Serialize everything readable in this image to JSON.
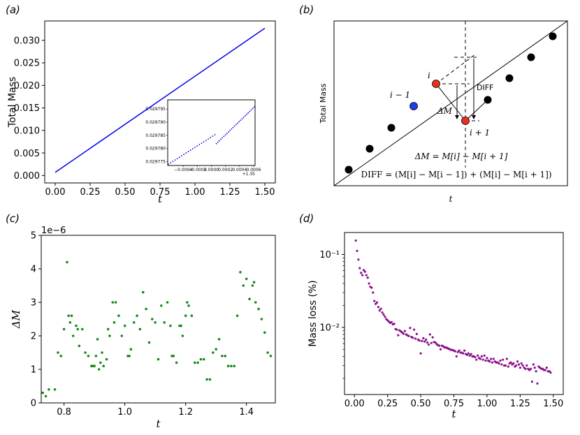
{
  "panels": {
    "a": "(a)",
    "b": "(b)",
    "c": "(c)",
    "d": "(d)"
  },
  "chart_data": [
    {
      "id": "a",
      "type": "line",
      "xlabel": "t",
      "ylabel": "Total Mass",
      "xlim": [
        -0.075,
        1.575
      ],
      "ylim": [
        -0.00165,
        0.0343
      ],
      "xticks": [
        "0.00",
        "0.25",
        "0.50",
        "0.75",
        "1.00",
        "1.25",
        "1.50"
      ],
      "xtick_values": [
        0,
        0.25,
        0.5,
        0.75,
        1.0,
        1.25,
        1.5
      ],
      "yticks": [
        "0.000",
        "0.005",
        "0.010",
        "0.015",
        "0.020",
        "0.025",
        "0.030"
      ],
      "ytick_values": [
        0,
        0.005,
        0.01,
        0.015,
        0.02,
        0.025,
        0.03
      ],
      "color": "#0000ee",
      "x": [
        0.0,
        1.5
      ],
      "y": [
        0.0007,
        0.0327
      ],
      "inset": {
        "type": "scatter",
        "xlim": [
          -0.00062,
          0.00062
        ],
        "ylim": [
          0.0297735,
          0.0297985
        ],
        "xticks": [
          "−0.0004",
          "−0.0002",
          "0.0000",
          "0.0002",
          "0.0004",
          "0.0006"
        ],
        "xtick_values": [
          -0.0004,
          -0.0002,
          0.0,
          0.0002,
          0.0004,
          0.0006
        ],
        "yticks": [
          "0.029775",
          "0.029780",
          "0.029785",
          "0.029790",
          "0.029795"
        ],
        "ytick_values": [
          0.029775,
          0.02978,
          0.029785,
          0.02979,
          0.029795
        ],
        "offset_label": "+1.35",
        "color": "#0000ee",
        "segments": [
          {
            "x0": -0.00061,
            "x1": 5e-05,
            "y0": 0.029774,
            "y1": 0.0297852,
            "n": 22
          },
          {
            "x0": 7e-05,
            "x1": 0.00061,
            "y0": 0.0297818,
            "y1": 0.0297958,
            "n": 26
          }
        ]
      }
    },
    {
      "id": "b",
      "type": "diagram",
      "xlabel": "t",
      "ylabel": "Total Mass",
      "label_i": "i",
      "label_im1": "i − 1",
      "label_ip1": "i + 1",
      "label_dm": "ΔM",
      "label_diff": "DIFF",
      "eq1": "ΔM = M[i] − M[i + 1]",
      "eq2": "DIFF = (M[i] − M[i − 1]) + (M[i] − M[i + 1])",
      "colors": {
        "point": "#000000",
        "prev": "#1f3fe6",
        "current": "#e8321e",
        "next": "#e8321e"
      }
    },
    {
      "id": "c",
      "type": "scatter",
      "xlabel": "t",
      "ylabel": "ΔM",
      "offset_label": "1e−6",
      "xlim": [
        0.725,
        1.495
      ],
      "ylim": [
        0,
        5
      ],
      "xticks": [
        "0.8",
        "1.0",
        "1.2",
        "1.4"
      ],
      "xtick_values": [
        0.8,
        1.0,
        1.2,
        1.4
      ],
      "yticks": [
        "0",
        "1",
        "2",
        "3",
        "4",
        "5"
      ],
      "ytick_values": [
        0,
        1,
        2,
        3,
        4,
        5
      ],
      "color": "#1a8a1a",
      "x": [
        0.73,
        0.74,
        0.75,
        0.77,
        0.78,
        0.79,
        0.8,
        0.81,
        0.815,
        0.82,
        0.825,
        0.83,
        0.84,
        0.845,
        0.85,
        0.86,
        0.87,
        0.88,
        0.89,
        0.895,
        0.9,
        0.905,
        0.91,
        0.915,
        0.92,
        0.925,
        0.93,
        0.94,
        0.945,
        0.95,
        0.96,
        0.965,
        0.97,
        0.98,
        0.99,
        1.0,
        1.01,
        1.015,
        1.02,
        1.03,
        1.04,
        1.05,
        1.06,
        1.07,
        1.08,
        1.09,
        1.1,
        1.11,
        1.12,
        1.13,
        1.14,
        1.15,
        1.155,
        1.16,
        1.17,
        1.18,
        1.185,
        1.19,
        1.2,
        1.205,
        1.21,
        1.22,
        1.23,
        1.24,
        1.25,
        1.26,
        1.27,
        1.28,
        1.29,
        1.3,
        1.31,
        1.32,
        1.33,
        1.34,
        1.35,
        1.36,
        1.37,
        1.38,
        1.39,
        1.4,
        1.41,
        1.42,
        1.425,
        1.43,
        1.44,
        1.45,
        1.46,
        1.47,
        1.48
      ],
      "y": [
        0.3,
        0.2,
        0.4,
        0.4,
        1.5,
        1.4,
        2.2,
        4.2,
        2.6,
        2.4,
        2.6,
        2.0,
        2.3,
        2.2,
        1.7,
        2.2,
        1.5,
        1.4,
        1.1,
        1.1,
        1.1,
        1.4,
        1.9,
        1.0,
        1.2,
        1.5,
        1.1,
        1.3,
        2.2,
        2.0,
        3.0,
        2.4,
        3.0,
        2.6,
        2.0,
        2.3,
        1.4,
        1.4,
        1.6,
        2.4,
        2.6,
        2.2,
        3.3,
        2.8,
        1.8,
        2.5,
        2.4,
        1.3,
        2.9,
        2.4,
        3.0,
        2.3,
        1.4,
        1.4,
        1.2,
        2.3,
        2.3,
        2.0,
        2.6,
        3.0,
        2.9,
        2.6,
        1.2,
        1.2,
        1.3,
        1.3,
        0.7,
        0.7,
        1.5,
        1.6,
        1.9,
        1.4,
        1.4,
        1.1,
        1.1,
        1.1,
        2.6,
        3.9,
        3.5,
        3.7,
        3.1,
        3.5,
        3.6,
        3.0,
        2.8,
        2.5,
        2.1,
        1.5,
        1.4
      ]
    },
    {
      "id": "d",
      "type": "scatter",
      "scale_y": "log",
      "xlabel": "t",
      "ylabel": "Mass loss (%)",
      "xlim": [
        -0.075,
        1.575
      ],
      "ylim": [
        0.0012,
        0.2
      ],
      "xticks": [
        "0.00",
        "0.25",
        "0.50",
        "0.75",
        "1.00",
        "1.25",
        "1.50"
      ],
      "xtick_values": [
        0,
        0.25,
        0.5,
        0.75,
        1.0,
        1.25,
        1.5
      ],
      "yticks": [
        "10⁻¹",
        "10⁻²"
      ],
      "ytick_values": [
        0.1,
        0.01
      ],
      "color": "#8b0f8b",
      "x": [
        0.01,
        0.02,
        0.03,
        0.04,
        0.05,
        0.06,
        0.07,
        0.08,
        0.09,
        0.1,
        0.11,
        0.12,
        0.13,
        0.14,
        0.15,
        0.16,
        0.17,
        0.18,
        0.19,
        0.2,
        0.21,
        0.22,
        0.23,
        0.24,
        0.25,
        0.26,
        0.27,
        0.28,
        0.29,
        0.3,
        0.31,
        0.32,
        0.33,
        0.34,
        0.35,
        0.36,
        0.37,
        0.38,
        0.39,
        0.4,
        0.41,
        0.42,
        0.43,
        0.44,
        0.45,
        0.46,
        0.47,
        0.48,
        0.49,
        0.5,
        0.51,
        0.52,
        0.53,
        0.54,
        0.55,
        0.56,
        0.57,
        0.58,
        0.59,
        0.6,
        0.61,
        0.62,
        0.63,
        0.64,
        0.65,
        0.66,
        0.67,
        0.68,
        0.69,
        0.7,
        0.71,
        0.72,
        0.73,
        0.74,
        0.75,
        0.76,
        0.77,
        0.78,
        0.79,
        0.8,
        0.81,
        0.82,
        0.83,
        0.84,
        0.85,
        0.86,
        0.87,
        0.88,
        0.89,
        0.9,
        0.91,
        0.92,
        0.93,
        0.94,
        0.95,
        0.96,
        0.97,
        0.98,
        0.99,
        1.0,
        1.01,
        1.02,
        1.03,
        1.04,
        1.05,
        1.06,
        1.07,
        1.08,
        1.09,
        1.1,
        1.11,
        1.12,
        1.13,
        1.14,
        1.15,
        1.16,
        1.17,
        1.18,
        1.19,
        1.2,
        1.21,
        1.22,
        1.23,
        1.24,
        1.25,
        1.26,
        1.27,
        1.28,
        1.29,
        1.3,
        1.31,
        1.32,
        1.33,
        1.34,
        1.35,
        1.36,
        1.37,
        1.38,
        1.39,
        1.4,
        1.41,
        1.42,
        1.43,
        1.44,
        1.45,
        1.46,
        1.47,
        1.48
      ],
      "y": [
        0.155,
        0.112,
        0.085,
        0.065,
        0.056,
        0.052,
        0.061,
        0.058,
        0.052,
        0.048,
        0.04,
        0.036,
        0.035,
        0.03,
        0.023,
        0.021,
        0.022,
        0.019,
        0.017,
        0.018,
        0.016,
        0.015,
        0.014,
        0.013,
        0.0125,
        0.012,
        0.0115,
        0.0118,
        0.011,
        0.0112,
        0.0095,
        0.0093,
        0.0078,
        0.0091,
        0.0088,
        0.0085,
        0.0082,
        0.0089,
        0.008,
        0.0078,
        0.0076,
        0.0098,
        0.0074,
        0.0072,
        0.0093,
        0.007,
        0.0081,
        0.0068,
        0.0066,
        0.0044,
        0.0065,
        0.0071,
        0.0064,
        0.0068,
        0.0062,
        0.0058,
        0.008,
        0.0061,
        0.0073,
        0.0063,
        0.0062,
        0.0059,
        0.0057,
        0.0056,
        0.005,
        0.0056,
        0.0055,
        0.0053,
        0.0053,
        0.0052,
        0.0051,
        0.005,
        0.0049,
        0.0049,
        0.0048,
        0.0047,
        0.004,
        0.0046,
        0.0048,
        0.0045,
        0.0045,
        0.0044,
        0.0048,
        0.0043,
        0.0042,
        0.0044,
        0.0041,
        0.0043,
        0.004,
        0.004,
        0.0039,
        0.0036,
        0.0041,
        0.0038,
        0.0037,
        0.004,
        0.0036,
        0.0041,
        0.0035,
        0.0038,
        0.0035,
        0.0034,
        0.0037,
        0.0033,
        0.0037,
        0.0034,
        0.0033,
        0.0033,
        0.0032,
        0.0035,
        0.0031,
        0.0036,
        0.003,
        0.003,
        0.0037,
        0.0029,
        0.0032,
        0.0033,
        0.0031,
        0.0032,
        0.0029,
        0.003,
        0.0034,
        0.0031,
        0.0028,
        0.0032,
        0.003,
        0.0028,
        0.0027,
        0.003,
        0.0027,
        0.0026,
        0.0027,
        0.0018,
        0.0031,
        0.0028,
        0.0025,
        0.0017,
        0.0029,
        0.0028,
        0.0027,
        0.0027,
        0.0026,
        0.0026,
        0.0028,
        0.0025,
        0.0025,
        0.0024
      ]
    }
  ]
}
